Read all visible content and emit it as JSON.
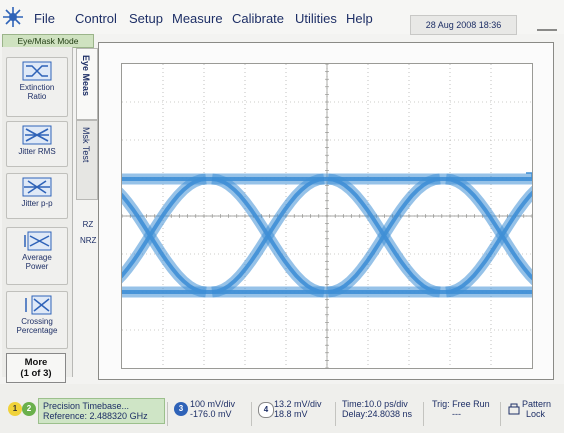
{
  "menu": {
    "file": "File",
    "control": "Control",
    "setup": "Setup",
    "measure": "Measure",
    "calibrate": "Calibrate",
    "utilities": "Utilities",
    "help": "Help"
  },
  "datetime": "28 Aug 2008  18:36",
  "mode": "Eye/Mask Mode",
  "tabs": {
    "eye_meas": "Eye Meas",
    "msk_test": "Msk Test",
    "rz": "RZ",
    "nrz": "NRZ"
  },
  "measurements": [
    {
      "label1": "Extinction",
      "label2": "Ratio",
      "icon": "extinction-ratio-icon"
    },
    {
      "label1": "Jitter RMS",
      "label2": "",
      "icon": "jitter-rms-icon"
    },
    {
      "label1": "Jitter p-p",
      "label2": "",
      "icon": "jitter-pp-icon"
    },
    {
      "label1": "Average",
      "label2": "Power",
      "icon": "average-power-icon"
    },
    {
      "label1": "Crossing",
      "label2": "Percentage",
      "icon": "crossing-percentage-icon"
    }
  ],
  "more": {
    "line1": "More",
    "line2": "(1 of 3)"
  },
  "trace_color": "#3f8fd6",
  "status": {
    "ch1": "1",
    "ch2": "2",
    "timebase_title": "Precision Timebase...",
    "timebase_ref": "Reference: 2.488320 GHz",
    "ch3": "3",
    "ch3_scale": "100 mV/div",
    "ch3_offset": "-176.0 mV",
    "ch4": "4",
    "ch4_scale": "13.2 mV/div",
    "ch4_offset": "18.8 mV",
    "time_scale": "Time:10.0 ps/div",
    "delay": "Delay:24.8038 ns",
    "trig": "Trig: Free Run",
    "trig_sub": "---",
    "pattern": "Pattern",
    "lock": "Lock"
  }
}
